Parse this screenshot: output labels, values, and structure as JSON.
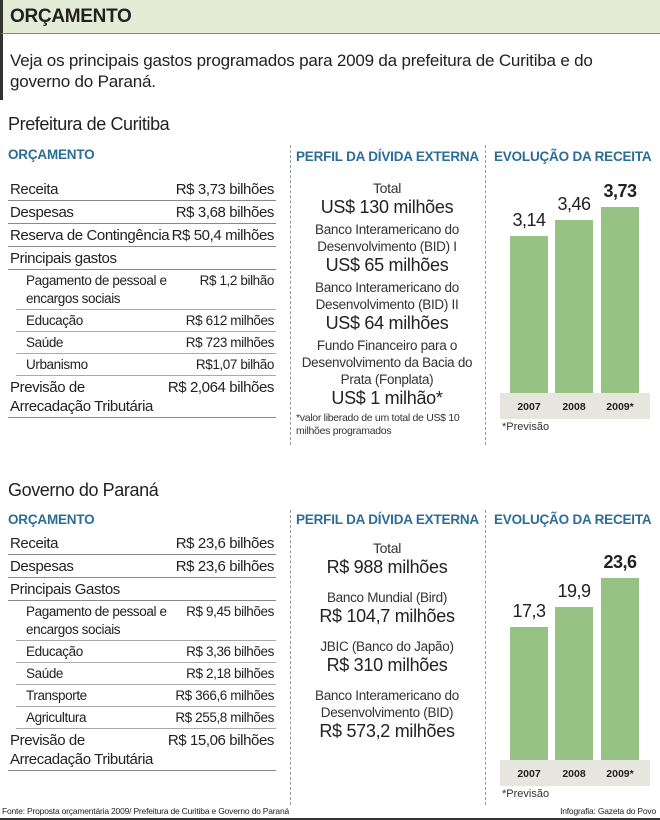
{
  "header": {
    "title": "ORÇAMENTO",
    "intro": "Veja os principais gastos programados para 2009 da prefeitura de Curitiba e do governo do Paraná."
  },
  "curitiba": {
    "title": "Prefeitura de Curitiba",
    "orcamento_title": "ORÇAMENTO",
    "rows": [
      {
        "label": "Receita",
        "value": "R$ 3,73 bilhões"
      },
      {
        "label": "Despesas",
        "value": "R$ 3,68 bilhões"
      },
      {
        "label": "Reserva de Contingência",
        "value": "R$ 50,4 milhões"
      },
      {
        "label": "Principais gastos",
        "value": ""
      },
      {
        "label": "Pagamento de pessoal e encargos sociais",
        "value": "R$ 1,2 bilhão",
        "sub": true
      },
      {
        "label": "Educação",
        "value": "R$ 612 milhões",
        "sub": true
      },
      {
        "label": "Saúde",
        "value": "R$ 723 milhões",
        "sub": true
      },
      {
        "label": "Urbanismo",
        "value": "R$1,07 bilhão",
        "sub": true
      },
      {
        "label": "Previsão de Arrecadação Tributária",
        "value": "R$ 2,064 bilhões"
      }
    ],
    "divida_title": "PERFIL DA DÍVIDA EXTERNA",
    "divida": [
      {
        "name": "Total",
        "amount": "US$ 130 milhões"
      },
      {
        "name": "Banco Interamericano do Desenvolvimento (BID) I",
        "amount": "US$ 65 milhões"
      },
      {
        "name": "Banco Interamericano do Desenvolvimento (BID) II",
        "amount": "US$ 64 milhões"
      },
      {
        "name": "Fundo Financeiro para o Desenvolvimento da Bacia do Prata (Fonplata)",
        "amount": "US$ 1 milhão*"
      }
    ],
    "divida_note": "*valor liberado de um total de US$ 10 milhões programados",
    "receita_title": "EVOLUÇÃO DA RECEITA",
    "receita_note": "*Previsão"
  },
  "parana": {
    "title": "Governo do Paraná",
    "orcamento_title": "ORÇAMENTO",
    "rows": [
      {
        "label": "Receita",
        "value": "R$ 23,6 bilhões"
      },
      {
        "label": "Despesas",
        "value": "R$ 23,6 bilhões"
      },
      {
        "label": "Principais Gastos",
        "value": ""
      },
      {
        "label": "Pagamento de pessoal e encargos sociais",
        "value": "R$ 9,45 bilhões",
        "sub": true
      },
      {
        "label": "Educação",
        "value": "R$ 3,36 bilhões",
        "sub": true
      },
      {
        "label": "Saúde",
        "value": "R$ 2,18 bilhões",
        "sub": true
      },
      {
        "label": "Transporte",
        "value": "R$ 366,6 milhões",
        "sub": true
      },
      {
        "label": "Agricultura",
        "value": "R$ 255,8 milhões",
        "sub": true
      },
      {
        "label": "Previsão de Arrecadação Tributária",
        "value": "R$ 15,06 bilhões"
      }
    ],
    "divida_title": "PERFIL DA DÍVIDA EXTERNA",
    "divida": [
      {
        "name": "Total",
        "amount": "R$ 988 milhões"
      },
      {
        "name": "Banco Mundial (Bird)",
        "amount": "R$ 104,7 milhões"
      },
      {
        "name": "JBIC (Banco do Japão)",
        "amount": "R$ 310 milhões"
      },
      {
        "name": "Banco Interamericano do Desenvolvimento (BID)",
        "amount": "R$ 573,2 milhões"
      }
    ],
    "receita_title": "EVOLUÇÃO DA RECEITA",
    "receita_note": "*Previsão"
  },
  "footer": {
    "source": "Fonte: Proposta orçamentária 2009/  Prefeitura de Curitiba e Governo do Paraná",
    "credit": "Infografia: Gazeta do Povo"
  },
  "chart_data": [
    {
      "type": "bar",
      "title": "EVOLUÇÃO DA RECEITA",
      "categories": [
        "2007",
        "2008",
        "2009*"
      ],
      "values": [
        3.14,
        3.46,
        3.73
      ],
      "labels": [
        "3,14",
        "3,46",
        "3,73"
      ],
      "ylim": [
        0,
        3.73
      ],
      "color": "#96c283",
      "grid": false
    },
    {
      "type": "bar",
      "title": "EVOLUÇÃO DA RECEITA",
      "categories": [
        "2007",
        "2008",
        "2009*"
      ],
      "values": [
        17.3,
        19.9,
        23.6
      ],
      "labels": [
        "17,3",
        "19,9",
        "23,6"
      ],
      "ylim": [
        0,
        23.6
      ],
      "color": "#96c283",
      "grid": false
    }
  ]
}
